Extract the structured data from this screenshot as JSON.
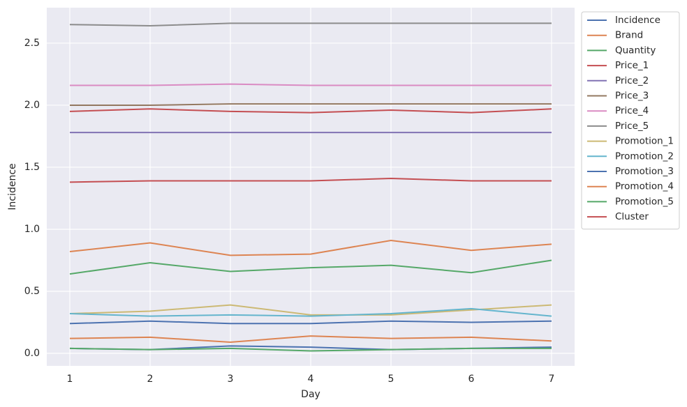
{
  "chart_data": {
    "type": "line",
    "x_label": "Day",
    "y_label": "Incidence",
    "x": [
      1,
      2,
      3,
      4,
      5,
      6,
      7
    ],
    "xlim": [
      0.713,
      7.287
    ],
    "xticks": [
      1,
      2,
      3,
      4,
      5,
      6,
      7
    ],
    "ylim": [
      -0.101,
      2.786
    ],
    "yticks": [
      {
        "value": 0,
        "label": "0.0"
      },
      0.5,
      {
        "value": 1,
        "label": "1.0"
      },
      1.5,
      {
        "value": 2,
        "label": "2.0"
      },
      2.5
    ],
    "grid": true,
    "legend": "outside right",
    "series": [
      {
        "name": "Incidence",
        "color": "#4c72b0",
        "values": [
          0.24,
          0.26,
          0.24,
          0.24,
          0.26,
          0.25,
          0.26
        ]
      },
      {
        "name": "Brand",
        "color": "#dd8452",
        "values": [
          0.82,
          0.89,
          0.79,
          0.8,
          0.91,
          0.83,
          0.88
        ]
      },
      {
        "name": "Quantity",
        "color": "#55a868",
        "values": [
          0.64,
          0.73,
          0.66,
          0.69,
          0.71,
          0.65,
          0.75
        ]
      },
      {
        "name": "Price_1",
        "color": "#c44e52",
        "values": [
          1.95,
          1.97,
          1.95,
          1.94,
          1.96,
          1.94,
          1.97
        ]
      },
      {
        "name": "Price_2",
        "color": "#8172b3",
        "values": [
          1.78,
          1.78,
          1.78,
          1.78,
          1.78,
          1.78,
          1.78
        ]
      },
      {
        "name": "Price_3",
        "color": "#937860",
        "values": [
          2.0,
          2.0,
          2.01,
          2.01,
          2.01,
          2.01,
          2.01
        ]
      },
      {
        "name": "Price_4",
        "color": "#da8bc3",
        "values": [
          2.16,
          2.16,
          2.17,
          2.16,
          2.16,
          2.16,
          2.16
        ]
      },
      {
        "name": "Price_5",
        "color": "#8c8c8c",
        "values": [
          2.65,
          2.64,
          2.66,
          2.66,
          2.66,
          2.66,
          2.66
        ]
      },
      {
        "name": "Promotion_1",
        "color": "#ccb974",
        "values": [
          0.32,
          0.34,
          0.39,
          0.31,
          0.31,
          0.35,
          0.39
        ]
      },
      {
        "name": "Promotion_2",
        "color": "#64b5cd",
        "values": [
          0.32,
          0.3,
          0.31,
          0.3,
          0.32,
          0.36,
          0.3
        ]
      },
      {
        "name": "Promotion_3",
        "color": "#4c72b0",
        "values": [
          0.04,
          0.03,
          0.06,
          0.05,
          0.03,
          0.04,
          0.05
        ]
      },
      {
        "name": "Promotion_4",
        "color": "#dd8452",
        "values": [
          0.12,
          0.13,
          0.09,
          0.14,
          0.12,
          0.13,
          0.1
        ]
      },
      {
        "name": "Promotion_5",
        "color": "#55a868",
        "values": [
          0.04,
          0.03,
          0.04,
          0.02,
          0.03,
          0.04,
          0.04
        ]
      },
      {
        "name": "Cluster",
        "color": "#c44e52",
        "values": [
          1.38,
          1.39,
          1.39,
          1.39,
          1.41,
          1.39,
          1.39
        ]
      }
    ]
  }
}
